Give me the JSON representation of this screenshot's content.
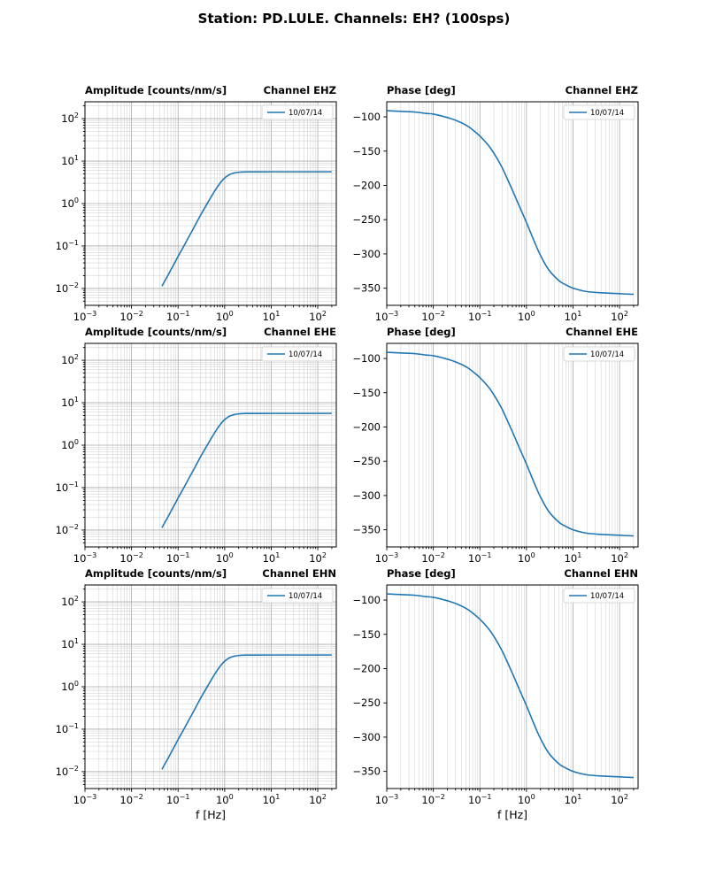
{
  "figure": {
    "title": "Station: PD.LULE. Channels: EH? (100sps)"
  },
  "colors": {
    "line": "#1f77b4",
    "grid_major": "#aaaaaa",
    "grid_minor": "#cccccc",
    "legend_border": "#cccccc",
    "frame": "#000000"
  },
  "chart_data": [
    {
      "type": "line",
      "channel": "EHZ",
      "quantity": "amplitude",
      "title_left": "Amplitude [counts/nm/s]",
      "title_right": "Channel EHZ",
      "x_scale": "log",
      "y_scale": "log",
      "xlim": [
        0.001,
        250
      ],
      "ylim": [
        0.004,
        250
      ],
      "x_tick_exponents": [
        -3,
        -2,
        -1,
        0,
        1,
        2
      ],
      "y_tick_exponents": [
        -2,
        -1,
        0,
        1,
        2
      ],
      "grid_y": true,
      "xlabel": "",
      "legend": "10/07/14",
      "series": [
        {
          "name": "10/07/14",
          "x": [
            0.045,
            0.05,
            0.06,
            0.07,
            0.085,
            0.1,
            0.13,
            0.17,
            0.22,
            0.3,
            0.4,
            0.55,
            0.7,
            0.9,
            1.2,
            1.6,
            2.2,
            3,
            5,
            10,
            30,
            100,
            200
          ],
          "y": [
            0.0113,
            0.014,
            0.02,
            0.0275,
            0.0405,
            0.057,
            0.095,
            0.164,
            0.275,
            0.52,
            0.9,
            1.63,
            2.48,
            3.56,
            4.64,
            5.25,
            5.51,
            5.58,
            5.59,
            5.6,
            5.6,
            5.6,
            5.6
          ]
        }
      ]
    },
    {
      "type": "line",
      "channel": "EHZ",
      "quantity": "phase",
      "title_left": "Phase [deg]",
      "title_right": "Channel EHZ",
      "x_scale": "log",
      "y_scale": "linear",
      "xlim": [
        0.001,
        250
      ],
      "ylim": [
        -375,
        -78
      ],
      "x_tick_exponents": [
        -3,
        -2,
        -1,
        0,
        1,
        2
      ],
      "y_ticks": [
        -100,
        -150,
        -200,
        -250,
        -300,
        -350
      ],
      "grid_y": false,
      "xlabel": "",
      "legend": "10/07/14",
      "series": [
        {
          "name": "10/07/14",
          "x": [
            0.001,
            0.002,
            0.004,
            0.007,
            0.01,
            0.02,
            0.03,
            0.05,
            0.07,
            0.1,
            0.15,
            0.2,
            0.3,
            0.5,
            0.7,
            1,
            1.5,
            2,
            3,
            5,
            7,
            10,
            20,
            50,
            100,
            200
          ],
          "y": [
            -91,
            -92,
            -93,
            -95,
            -96,
            -101,
            -105,
            -112,
            -119,
            -128,
            -141,
            -153,
            -174,
            -207,
            -230,
            -254,
            -283,
            -302,
            -323,
            -339,
            -345,
            -350,
            -355,
            -357,
            -358,
            -359
          ]
        }
      ]
    },
    {
      "type": "line",
      "channel": "EHE",
      "quantity": "amplitude",
      "title_left": "Amplitude [counts/nm/s]",
      "title_right": "Channel EHE",
      "x_scale": "log",
      "y_scale": "log",
      "xlim": [
        0.001,
        250
      ],
      "ylim": [
        0.004,
        250
      ],
      "x_tick_exponents": [
        -3,
        -2,
        -1,
        0,
        1,
        2
      ],
      "y_tick_exponents": [
        -2,
        -1,
        0,
        1,
        2
      ],
      "grid_y": true,
      "xlabel": "",
      "legend": "10/07/14",
      "series": [
        {
          "name": "10/07/14",
          "x": [
            0.045,
            0.05,
            0.06,
            0.07,
            0.085,
            0.1,
            0.13,
            0.17,
            0.22,
            0.3,
            0.4,
            0.55,
            0.7,
            0.9,
            1.2,
            1.6,
            2.2,
            3,
            5,
            10,
            30,
            100,
            200
          ],
          "y": [
            0.0113,
            0.014,
            0.02,
            0.0275,
            0.0405,
            0.057,
            0.095,
            0.164,
            0.275,
            0.52,
            0.9,
            1.63,
            2.48,
            3.56,
            4.64,
            5.25,
            5.51,
            5.58,
            5.59,
            5.6,
            5.6,
            5.6,
            5.6
          ]
        }
      ]
    },
    {
      "type": "line",
      "channel": "EHE",
      "quantity": "phase",
      "title_left": "Phase [deg]",
      "title_right": "Channel EHE",
      "x_scale": "log",
      "y_scale": "linear",
      "xlim": [
        0.001,
        250
      ],
      "ylim": [
        -375,
        -78
      ],
      "x_tick_exponents": [
        -3,
        -2,
        -1,
        0,
        1,
        2
      ],
      "y_ticks": [
        -100,
        -150,
        -200,
        -250,
        -300,
        -350
      ],
      "grid_y": false,
      "xlabel": "",
      "legend": "10/07/14",
      "series": [
        {
          "name": "10/07/14",
          "x": [
            0.001,
            0.002,
            0.004,
            0.007,
            0.01,
            0.02,
            0.03,
            0.05,
            0.07,
            0.1,
            0.15,
            0.2,
            0.3,
            0.5,
            0.7,
            1,
            1.5,
            2,
            3,
            5,
            7,
            10,
            20,
            50,
            100,
            200
          ],
          "y": [
            -91,
            -92,
            -93,
            -95,
            -96,
            -101,
            -105,
            -112,
            -119,
            -128,
            -141,
            -153,
            -174,
            -207,
            -230,
            -254,
            -283,
            -302,
            -323,
            -339,
            -345,
            -350,
            -355,
            -357,
            -358,
            -359
          ]
        }
      ]
    },
    {
      "type": "line",
      "channel": "EHN",
      "quantity": "amplitude",
      "title_left": "Amplitude [counts/nm/s]",
      "title_right": "Channel EHN",
      "x_scale": "log",
      "y_scale": "log",
      "xlim": [
        0.001,
        250
      ],
      "ylim": [
        0.004,
        250
      ],
      "x_tick_exponents": [
        -3,
        -2,
        -1,
        0,
        1,
        2
      ],
      "y_tick_exponents": [
        -2,
        -1,
        0,
        1,
        2
      ],
      "grid_y": true,
      "xlabel": "f [Hz]",
      "legend": "10/07/14",
      "series": [
        {
          "name": "10/07/14",
          "x": [
            0.045,
            0.05,
            0.06,
            0.07,
            0.085,
            0.1,
            0.13,
            0.17,
            0.22,
            0.3,
            0.4,
            0.55,
            0.7,
            0.9,
            1.2,
            1.6,
            2.2,
            3,
            5,
            10,
            30,
            100,
            200
          ],
          "y": [
            0.0113,
            0.014,
            0.02,
            0.0275,
            0.0405,
            0.057,
            0.095,
            0.164,
            0.275,
            0.52,
            0.9,
            1.63,
            2.48,
            3.56,
            4.64,
            5.25,
            5.51,
            5.58,
            5.59,
            5.6,
            5.6,
            5.6,
            5.6
          ]
        }
      ]
    },
    {
      "type": "line",
      "channel": "EHN",
      "quantity": "phase",
      "title_left": "Phase [deg]",
      "title_right": "Channel EHN",
      "x_scale": "log",
      "y_scale": "linear",
      "xlim": [
        0.001,
        250
      ],
      "ylim": [
        -375,
        -78
      ],
      "x_tick_exponents": [
        -3,
        -2,
        -1,
        0,
        1,
        2
      ],
      "y_ticks": [
        -100,
        -150,
        -200,
        -250,
        -300,
        -350
      ],
      "grid_y": false,
      "xlabel": "f [Hz]",
      "legend": "10/07/14",
      "series": [
        {
          "name": "10/07/14",
          "x": [
            0.001,
            0.002,
            0.004,
            0.007,
            0.01,
            0.02,
            0.03,
            0.05,
            0.07,
            0.1,
            0.15,
            0.2,
            0.3,
            0.5,
            0.7,
            1,
            1.5,
            2,
            3,
            5,
            7,
            10,
            20,
            50,
            100,
            200
          ],
          "y": [
            -91,
            -92,
            -93,
            -95,
            -96,
            -101,
            -105,
            -112,
            -119,
            -128,
            -141,
            -153,
            -174,
            -207,
            -230,
            -254,
            -283,
            -302,
            -323,
            -339,
            -345,
            -350,
            -355,
            -357,
            -358,
            -359
          ]
        }
      ]
    }
  ]
}
